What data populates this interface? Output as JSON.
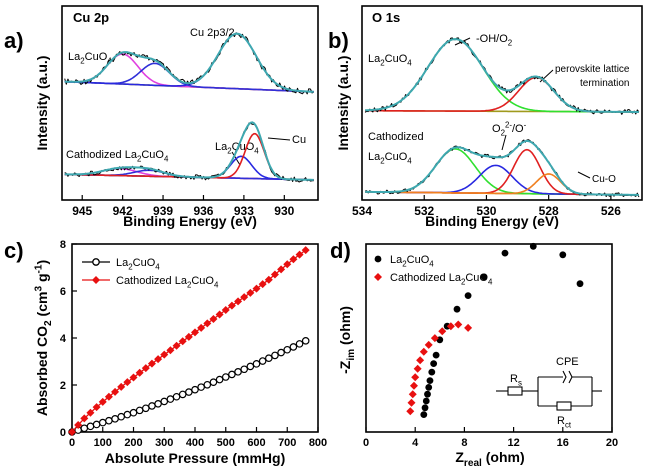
{
  "panels": {
    "a": {
      "letter": "a)"
    },
    "b": {
      "letter": "b)"
    },
    "c": {
      "letter": "c)"
    },
    "d": {
      "letter": "d)"
    }
  },
  "chart_data": [
    {
      "panel": "a",
      "type": "line",
      "title": "Cu 2p",
      "xlabel": "Binding Energy (eV)",
      "ylabel": "Intensity (a.u.)",
      "xlim": [
        946.5,
        927.5
      ],
      "x_reversed": true,
      "x_ticks": [
        945,
        942,
        939,
        936,
        933,
        930
      ],
      "y_ticks": [],
      "annotations": [
        "Cu 2p3/2",
        "La2CuO4",
        "Cathodized La2CuO4",
        "La2CuO4",
        "Cu"
      ],
      "upper_spectrum": {
        "label": "La2CuO4",
        "peaks_eV": [
          942.0,
          939.6,
          933.5
        ]
      },
      "lower_spectrum": {
        "label": "Cathodized La2CuO4",
        "peaks_eV": [
          942.2,
          940.0,
          933.2,
          932.3
        ]
      },
      "colors": {
        "data": "#000000",
        "fit": "#3ea8b0",
        "background": "#a09a1e",
        "satellite1": "#e040e0",
        "satellite2": "#3030d8",
        "cu2plus": "#2828e0",
        "cu_metal": "#e02020"
      }
    },
    {
      "panel": "b",
      "type": "line",
      "title": "O 1s",
      "xlabel": "Binding Energy (eV)",
      "ylabel": "Intensity (a.u.)",
      "xlim": [
        534,
        525
      ],
      "x_reversed": true,
      "x_ticks": [
        534,
        532,
        530,
        528,
        526
      ],
      "y_ticks": [],
      "annotations": [
        "-OH/O2",
        "perovskite lattice",
        "termination",
        "La2CuO4",
        "Cathodized",
        "La2CuO4",
        "O2 2-/O-",
        "Cu-O"
      ],
      "upper_spectrum": {
        "label": "La2CuO4",
        "peaks_eV": [
          531.0,
          528.4
        ]
      },
      "lower_spectrum": {
        "label": "Cathodized La2CuO4",
        "peaks_eV": [
          531.0,
          529.7,
          528.7,
          528.0
        ]
      },
      "colors": {
        "data": "#000000",
        "fit": "#3ea8b0",
        "background": "#a09a1e",
        "oh": "#30e030",
        "lattice": "#e02020",
        "peroxide": "#2828e0",
        "cuo": "#f08020"
      }
    },
    {
      "panel": "c",
      "type": "line",
      "xlabel": "Absolute Pressure (mmHg)",
      "ylabel": "Absorbed CO2 (cm3 g-1)",
      "xlim": [
        0,
        800
      ],
      "ylim": [
        0,
        8
      ],
      "x_ticks": [
        0,
        100,
        200,
        300,
        400,
        500,
        600,
        700,
        800
      ],
      "y_ticks": [
        0,
        2,
        4,
        6,
        8
      ],
      "legend": "top-left",
      "series": [
        {
          "name": "La2CuO4",
          "color": "#000000",
          "marker": "open-circle",
          "x": [
            0,
            20,
            40,
            60,
            80,
            100,
            120,
            140,
            160,
            180,
            200,
            220,
            240,
            260,
            280,
            300,
            320,
            340,
            360,
            380,
            400,
            420,
            440,
            460,
            480,
            500,
            520,
            540,
            560,
            580,
            600,
            620,
            640,
            660,
            680,
            700,
            720,
            740,
            760
          ],
          "y": [
            0.0,
            0.08,
            0.16,
            0.24,
            0.32,
            0.4,
            0.48,
            0.56,
            0.65,
            0.74,
            0.82,
            0.92,
            1.01,
            1.11,
            1.2,
            1.3,
            1.4,
            1.5,
            1.6,
            1.7,
            1.8,
            1.91,
            2.01,
            2.12,
            2.23,
            2.34,
            2.45,
            2.56,
            2.67,
            2.79,
            2.9,
            3.02,
            3.14,
            3.26,
            3.38,
            3.5,
            3.62,
            3.75,
            3.88
          ]
        },
        {
          "name": "Cathodized La2CuO4",
          "color": "#e81010",
          "marker": "filled-diamond",
          "x": [
            0,
            20,
            40,
            60,
            80,
            100,
            120,
            140,
            160,
            180,
            200,
            220,
            240,
            260,
            280,
            300,
            320,
            340,
            360,
            380,
            400,
            420,
            440,
            460,
            480,
            500,
            520,
            540,
            560,
            580,
            600,
            620,
            640,
            660,
            680,
            700,
            720,
            740,
            760
          ],
          "y": [
            0.0,
            0.3,
            0.58,
            0.82,
            1.06,
            1.28,
            1.5,
            1.71,
            1.92,
            2.12,
            2.32,
            2.52,
            2.72,
            2.91,
            3.1,
            3.29,
            3.48,
            3.67,
            3.86,
            4.05,
            4.24,
            4.43,
            4.62,
            4.81,
            5.0,
            5.19,
            5.38,
            5.56,
            5.74,
            5.92,
            6.1,
            6.29,
            6.48,
            6.7,
            6.92,
            7.14,
            7.35,
            7.55,
            7.74
          ]
        }
      ]
    },
    {
      "panel": "d",
      "type": "scatter",
      "xlabel": "Zreal (ohm)",
      "ylabel": "-Zim (ohm)",
      "xlim": [
        0,
        20
      ],
      "x_ticks": [
        0,
        4,
        8,
        12,
        16,
        20
      ],
      "y_ticks": [],
      "legend": "top-left",
      "inset_circuit": {
        "labels": [
          "Rs",
          "CPE",
          "Rct"
        ]
      },
      "series": [
        {
          "name": "La2CuO4",
          "color": "#000000",
          "marker": "filled-circle",
          "x": [
            4.7,
            4.8,
            4.9,
            5.0,
            5.1,
            5.2,
            5.35,
            5.5,
            5.7,
            6.0,
            6.6,
            7.4,
            8.3,
            9.6,
            11.3,
            13.6,
            16.0,
            17.4
          ],
          "y": [
            0.1,
            0.3,
            0.5,
            0.7,
            0.9,
            1.1,
            1.35,
            1.6,
            1.85,
            2.3,
            2.7,
            3.2,
            3.6,
            4.15,
            4.85,
            5.05,
            4.8,
            3.95
          ]
        },
        {
          "name": "Cathodized La2CuO4",
          "color": "#e81010",
          "marker": "filled-diamond",
          "x": [
            3.6,
            3.7,
            3.8,
            3.9,
            4.0,
            4.2,
            4.4,
            4.7,
            5.1,
            5.6,
            6.2,
            6.9,
            7.5,
            8.3
          ],
          "y": [
            0.2,
            0.45,
            0.7,
            0.95,
            1.2,
            1.45,
            1.7,
            1.95,
            2.15,
            2.35,
            2.55,
            2.7,
            2.75,
            2.65
          ]
        }
      ]
    }
  ]
}
